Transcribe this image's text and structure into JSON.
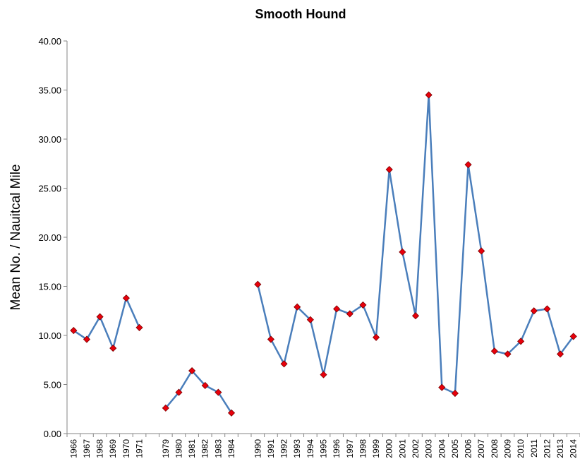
{
  "chart_data": {
    "type": "line",
    "title": "Smooth Hound",
    "y_label": "Mean No. / Nauitcal Mile",
    "categories": [
      "1966",
      "1967",
      "1968",
      "1969",
      "1970",
      "1971",
      null,
      "1979",
      "1980",
      "1981",
      "1982",
      "1983",
      "1984",
      null,
      "1990",
      "1991",
      "1992",
      "1993",
      "1994",
      "1995",
      "1996",
      "1997",
      "1998",
      "1999",
      "2000",
      "2001",
      "2002",
      "2003",
      "2004",
      "2005",
      "2006",
      "2007",
      "2008",
      "2009",
      "2010",
      "2011",
      "2012",
      "2013",
      "2014"
    ],
    "series": [
      {
        "name": "Smooth Hound",
        "color": "#4a7ebb",
        "marker_color": "#e8000b",
        "values": [
          10.5,
          9.6,
          11.9,
          8.7,
          13.8,
          10.8,
          null,
          2.6,
          4.2,
          6.4,
          4.9,
          4.2,
          2.1,
          null,
          15.2,
          9.6,
          7.1,
          12.9,
          11.6,
          6.0,
          12.7,
          12.2,
          13.1,
          9.8,
          26.9,
          18.5,
          12.0,
          34.5,
          4.7,
          4.1,
          27.4,
          18.6,
          8.4,
          8.1,
          9.4,
          12.5,
          12.7,
          8.1,
          9.9
        ]
      }
    ],
    "ylim": [
      0,
      40
    ],
    "yticks": [
      {
        "value": 0,
        "label": "0.00"
      },
      {
        "value": 5,
        "label": "5.00"
      },
      {
        "value": 10,
        "label": "10.00"
      },
      {
        "value": 15,
        "label": "15.00"
      },
      {
        "value": 20,
        "label": "20.00"
      },
      {
        "value": 25,
        "label": "25.00"
      },
      {
        "value": 30,
        "label": "30.00"
      },
      {
        "value": 35,
        "label": "35.00"
      },
      {
        "value": 40,
        "label": "40.00"
      }
    ],
    "grid": false
  }
}
